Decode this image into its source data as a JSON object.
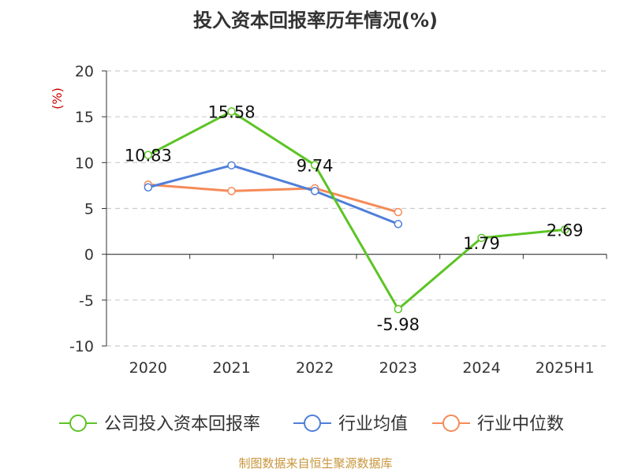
{
  "chart_data": {
    "type": "line",
    "title": "投入资本回报率历年情况(%)",
    "ylabel": "(%)",
    "categories": [
      "2020",
      "2021",
      "2022",
      "2023",
      "2024",
      "2025H1"
    ],
    "ylim": [
      -10,
      20
    ],
    "yticks": [
      20,
      15,
      10,
      5,
      0,
      -5,
      -10
    ],
    "grid": true,
    "legend_position": "bottom",
    "series": [
      {
        "name": "公司投入资本回报率",
        "color": "#5cc424",
        "values": [
          10.83,
          15.58,
          9.74,
          -5.98,
          1.79,
          2.69
        ],
        "labels": [
          "10.83",
          "15.58",
          "9.74",
          "-5.98",
          "1.79",
          "2.69"
        ]
      },
      {
        "name": "行业均值",
        "color": "#4f7fd9",
        "values": [
          7.3,
          9.7,
          6.9,
          3.3,
          null,
          null
        ]
      },
      {
        "name": "行业中位数",
        "color": "#f58b58",
        "values": [
          7.6,
          6.9,
          7.2,
          4.6,
          null,
          null
        ]
      }
    ],
    "source": "制图数据来自恒生聚源数据库",
    "colors": {
      "axis": "#333333",
      "grid": "#cccccc",
      "ylabel": "#cc0000",
      "source": "#c8963c",
      "title": "#333333"
    }
  }
}
